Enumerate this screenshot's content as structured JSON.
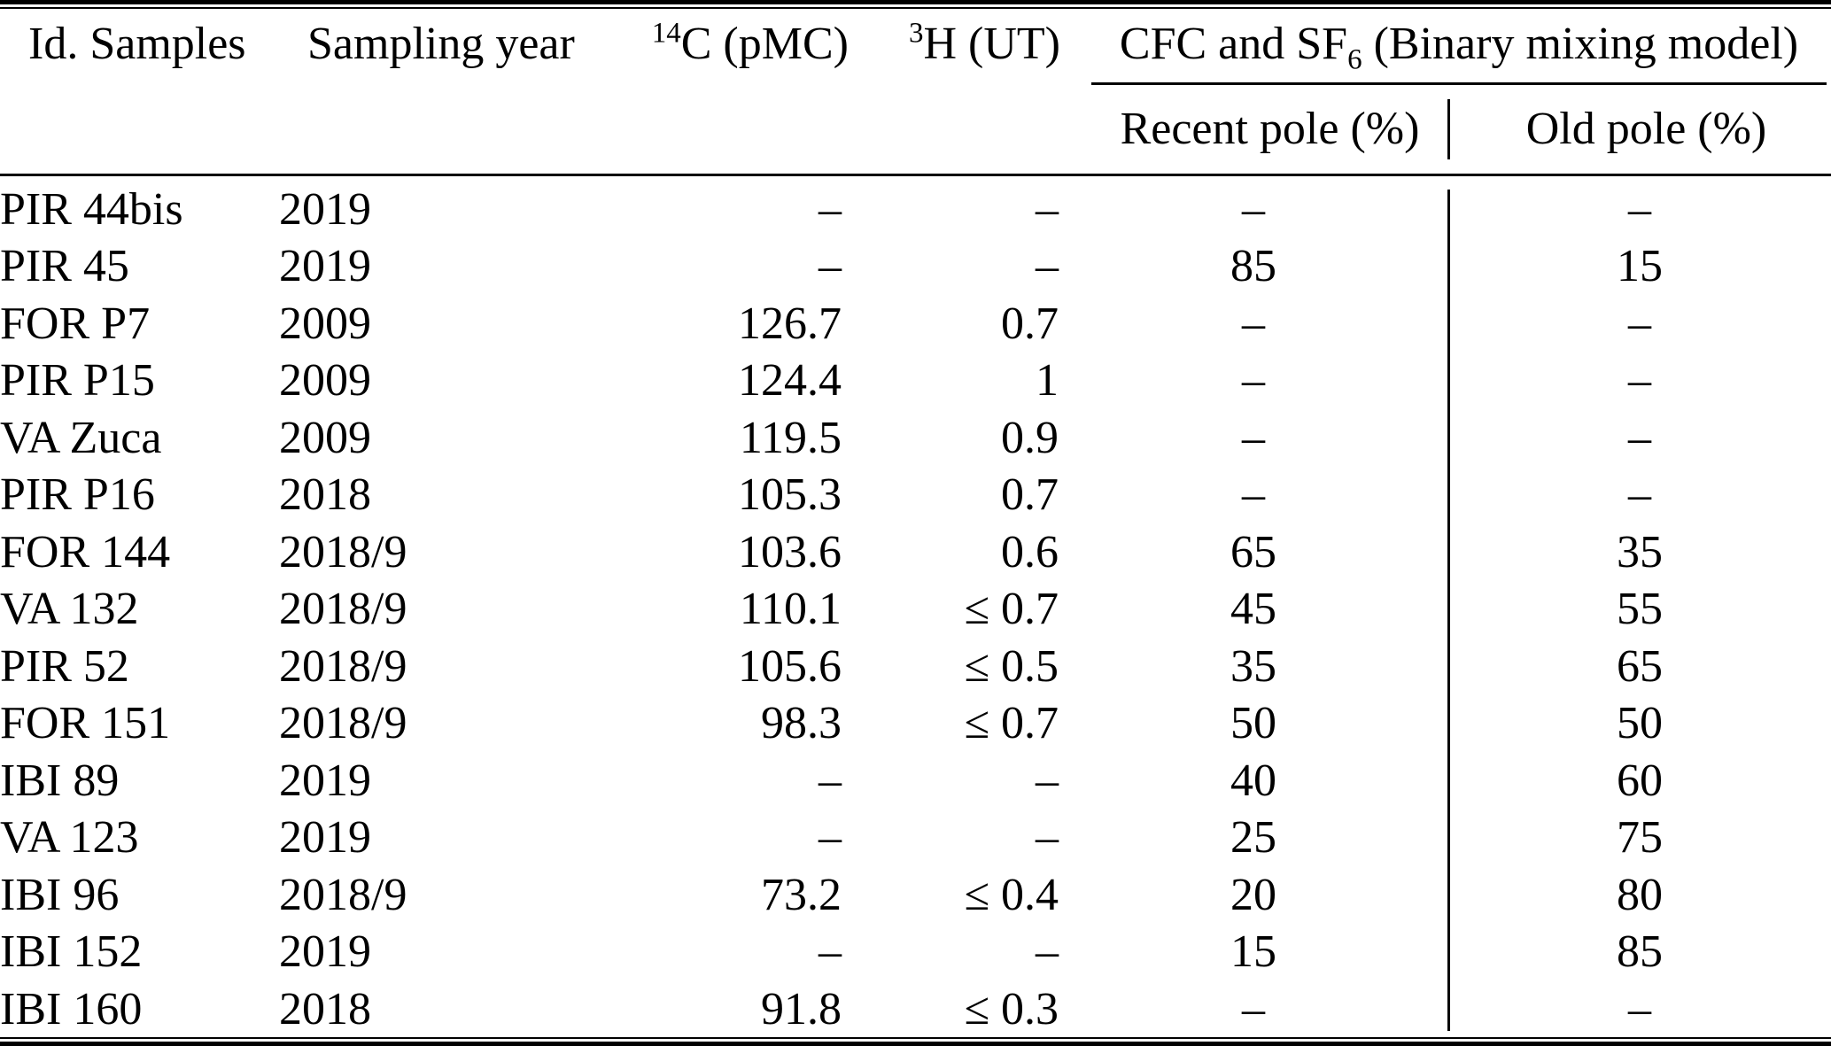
{
  "table": {
    "headers": {
      "id": "Id. Samples",
      "year": "Sampling year",
      "c14": {
        "sup": "14",
        "text": "C (pMC)"
      },
      "h3": {
        "sup": "3",
        "text": "H (UT)"
      },
      "group": {
        "pre": "CFC and SF",
        "sub": "6",
        "post": " (Binary mixing model)"
      },
      "recent": "Recent pole (%)",
      "old": "Old pole (%)"
    },
    "column_keys": [
      "id",
      "year",
      "c14",
      "h3",
      "recent",
      "old"
    ],
    "rows": [
      [
        "PIR 44bis",
        "2019",
        "–",
        "–",
        "–",
        "–"
      ],
      [
        "PIR 45",
        "2019",
        "–",
        "–",
        "85",
        "15"
      ],
      [
        "FOR P7",
        "2009",
        "126.7",
        "0.7",
        "–",
        "–"
      ],
      [
        "PIR P15",
        "2009",
        "124.4",
        "1",
        "–",
        "–"
      ],
      [
        "VA Zuca",
        "2009",
        "119.5",
        "0.9",
        "–",
        "–"
      ],
      [
        "PIR P16",
        "2018",
        "105.3",
        "0.7",
        "–",
        "–"
      ],
      [
        "FOR 144",
        "2018/9",
        "103.6",
        "0.6",
        "65",
        "35"
      ],
      [
        "VA 132",
        "2018/9",
        "110.1",
        "≤ 0.7",
        "45",
        "55"
      ],
      [
        "PIR 52",
        "2018/9",
        "105.6",
        "≤ 0.5",
        "35",
        "65"
      ],
      [
        "FOR 151",
        "2018/9",
        "98.3",
        "≤ 0.7",
        "50",
        "50"
      ],
      [
        "IBI 89",
        "2019",
        "–",
        "–",
        "40",
        "60"
      ],
      [
        "VA 123",
        "2019",
        "–",
        "–",
        "25",
        "75"
      ],
      [
        "IBI 96",
        "2018/9",
        "73.2",
        "≤ 0.4",
        "20",
        "80"
      ],
      [
        "IBI 152",
        "2019",
        "–",
        "–",
        "15",
        "85"
      ],
      [
        "IBI 160",
        "2018",
        "91.8",
        "≤ 0.3",
        "–",
        "–"
      ]
    ],
    "colors": {
      "text": "#000000",
      "background": "#ffffff",
      "rule": "#000000"
    }
  }
}
